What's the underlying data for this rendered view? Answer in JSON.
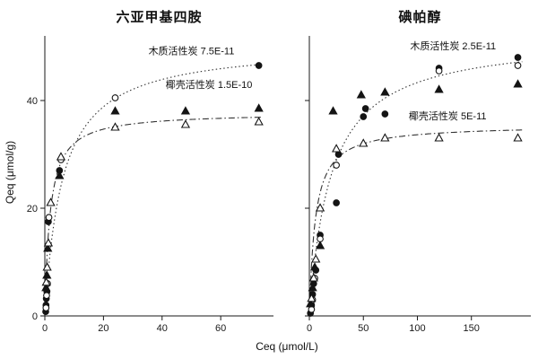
{
  "figure": {
    "xlabel": "Ceq (μmol/L)",
    "ylabel": "Qeq (μmol/g)",
    "background": "#ffffff",
    "ink": "#1a1a1a"
  },
  "chart_data": [
    {
      "type": "scatter",
      "title": "六亚甲基四胺",
      "xlabel": "Ceq (μmol/L)",
      "ylabel": "Qeq (μmol/g)",
      "xlim": [
        0,
        78
      ],
      "ylim": [
        0,
        52
      ],
      "xticks": [
        0,
        20,
        40,
        60
      ],
      "yticks": [
        0,
        20,
        40
      ],
      "show_ytick_labels": true,
      "grid": false,
      "curve_x_end": 74,
      "series": [
        {
          "name": "木质活性炭",
          "marker": "filled-circle",
          "points": [
            [
              0.3,
              0.8
            ],
            [
              0.4,
              2
            ],
            [
              0.5,
              3.2
            ],
            [
              0.7,
              4.5
            ],
            [
              1.2,
              17.5
            ],
            [
              5,
              27
            ],
            [
              73,
              46.5
            ]
          ]
        },
        {
          "name": "木质活性炭",
          "marker": "open-circle",
          "points": [
            [
              0.4,
              1.5
            ],
            [
              0.6,
              3.8
            ],
            [
              0.9,
              6
            ],
            [
              1.4,
              18.3
            ],
            [
              5.5,
              29
            ],
            [
              24,
              40.5
            ]
          ]
        },
        {
          "name": "椰壳活性炭",
          "marker": "filled-triangle",
          "points": [
            [
              0.4,
              5.2
            ],
            [
              0.7,
              7.5
            ],
            [
              1,
              12.5
            ],
            [
              5,
              26
            ],
            [
              24,
              38
            ],
            [
              48,
              38
            ],
            [
              73,
              38.5
            ]
          ]
        },
        {
          "name": "椰壳活性炭",
          "marker": "open-triangle",
          "points": [
            [
              0.5,
              6.2
            ],
            [
              0.8,
              9
            ],
            [
              1.2,
              13.5
            ],
            [
              2,
              21
            ],
            [
              5.5,
              29.5
            ],
            [
              24,
              35
            ],
            [
              48,
              35.5
            ],
            [
              73,
              36
            ]
          ]
        }
      ],
      "curves": [
        {
          "name": "木质活性炭拟合",
          "style": "dotted",
          "model": "langmuir",
          "qmax": 50.5,
          "k": 6
        },
        {
          "name": "椰壳活性炭拟合",
          "style": "dashdot",
          "model": "langmuir",
          "qmax": 37.8,
          "k": 1.8
        }
      ],
      "annotations": [
        {
          "text": "木质活性炭 7.5E-11",
          "x": 50,
          "y": 48.6
        },
        {
          "text": "椰壳活性炭 1.5E-10",
          "x": 56,
          "y": 42.3
        }
      ]
    },
    {
      "type": "scatter",
      "title": "碘帕醇",
      "xlabel": "Ceq (μmol/L)",
      "ylabel": "Qeq (μmol/g)",
      "xlim": [
        0,
        205
      ],
      "ylim": [
        0,
        52
      ],
      "xticks": [
        0,
        50,
        100,
        150
      ],
      "yticks": [
        0,
        20,
        40
      ],
      "show_ytick_labels": false,
      "grid": false,
      "curve_x_end": 197,
      "series": [
        {
          "name": "木质活性炭",
          "marker": "filled-circle",
          "points": [
            [
              1,
              0.5
            ],
            [
              2,
              2
            ],
            [
              3,
              4
            ],
            [
              4,
              6
            ],
            [
              6,
              8.5
            ],
            [
              10,
              15
            ],
            [
              25,
              21
            ],
            [
              27,
              30
            ],
            [
              50,
              37
            ],
            [
              52,
              38.5
            ],
            [
              70,
              37.5
            ],
            [
              120,
              46
            ],
            [
              193,
              48
            ]
          ]
        },
        {
          "name": "木质活性炭",
          "marker": "open-circle",
          "points": [
            [
              2,
              1.2
            ],
            [
              3,
              3
            ],
            [
              5,
              7
            ],
            [
              10,
              14.3
            ],
            [
              25,
              28
            ],
            [
              120,
              45.5
            ],
            [
              193,
              46.5
            ]
          ]
        },
        {
          "name": "椰壳活性炭",
          "marker": "filled-triangle",
          "points": [
            [
              1,
              2.2
            ],
            [
              3,
              5.2
            ],
            [
              5,
              9
            ],
            [
              10,
              13
            ],
            [
              22,
              38
            ],
            [
              48,
              41
            ],
            [
              70,
              41.5
            ],
            [
              120,
              42
            ],
            [
              193,
              43
            ]
          ]
        },
        {
          "name": "椰壳活性炭",
          "marker": "open-triangle",
          "points": [
            [
              2,
              3.2
            ],
            [
              4,
              7
            ],
            [
              6,
              10.5
            ],
            [
              10,
              20
            ],
            [
              25,
              31
            ],
            [
              50,
              32
            ],
            [
              70,
              33
            ],
            [
              120,
              33
            ],
            [
              193,
              33
            ]
          ]
        }
      ],
      "curves": [
        {
          "name": "木质活性炭拟合",
          "style": "dotted",
          "model": "langmuir",
          "qmax": 52,
          "k": 20
        },
        {
          "name": "椰壳活性炭拟合",
          "style": "dashdot",
          "model": "langmuir",
          "qmax": 35.5,
          "k": 5.5
        }
      ],
      "annotations": [
        {
          "text": "木质活性炭 2.5E-11",
          "x": 133,
          "y": 49.5
        },
        {
          "text": "椰壳活性炭 5E-11",
          "x": 128,
          "y": 36.5
        }
      ]
    }
  ]
}
